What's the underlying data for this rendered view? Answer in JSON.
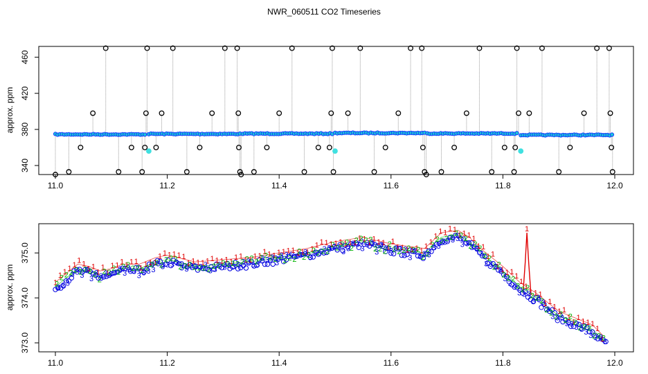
{
  "figure": {
    "title": "NWR_060511  CO2 Timeseries"
  },
  "chart_data": [
    {
      "type": "scatter",
      "panel": "raw",
      "xlabel": "",
      "ylabel": "approx. ppm",
      "xlim": [
        11.0,
        12.0
      ],
      "ylim": [
        330,
        472
      ],
      "x_ticks": [
        11.0,
        11.2,
        11.4,
        11.6,
        11.8,
        12.0
      ],
      "x_tick_labels": [
        "11.0",
        "11.2",
        "11.4",
        "11.6",
        "11.8",
        "12.0"
      ],
      "y_ticks": [
        340,
        380,
        420,
        460
      ],
      "y_tick_labels": [
        "340",
        "380",
        "420",
        "460"
      ],
      "colors": {
        "baseline": "#1a3cff",
        "baseline_fill": "#19c8d6",
        "outlier": "#000000",
        "spike_line": "#9a9a9a",
        "anomaly": "#40e0e0"
      },
      "baseline_segments": [
        {
          "x": [
            11.0,
            11.16
          ],
          "y": [
            374.5,
            374.5
          ]
        },
        {
          "x": [
            11.167,
            11.33
          ],
          "y": [
            375.0,
            375.0
          ]
        },
        {
          "x": [
            11.335,
            11.495
          ],
          "y": [
            375.3,
            375.3
          ]
        },
        {
          "x": [
            11.5,
            11.66
          ],
          "y": [
            376.0,
            376.0
          ]
        },
        {
          "x": [
            11.665,
            11.825
          ],
          "y": [
            375.5,
            375.5
          ]
        },
        {
          "x": [
            11.832,
            11.995
          ],
          "y": [
            373.8,
            373.8
          ]
        }
      ],
      "anomalies": [
        {
          "x": 11.167,
          "y": 356
        },
        {
          "x": 11.5,
          "y": 356
        },
        {
          "x": 11.832,
          "y": 356
        }
      ],
      "outliers": [
        {
          "x": 11.0,
          "y": 330
        },
        {
          "x": 11.024,
          "y": 333
        },
        {
          "x": 11.045,
          "y": 360
        },
        {
          "x": 11.067,
          "y": 398
        },
        {
          "x": 11.09,
          "y": 470
        },
        {
          "x": 11.113,
          "y": 333
        },
        {
          "x": 11.136,
          "y": 360
        },
        {
          "x": 11.155,
          "y": 333
        },
        {
          "x": 11.16,
          "y": 360
        },
        {
          "x": 11.162,
          "y": 398
        },
        {
          "x": 11.164,
          "y": 470
        },
        {
          "x": 11.18,
          "y": 360
        },
        {
          "x": 11.19,
          "y": 398
        },
        {
          "x": 11.21,
          "y": 470
        },
        {
          "x": 11.235,
          "y": 333
        },
        {
          "x": 11.258,
          "y": 360
        },
        {
          "x": 11.28,
          "y": 398
        },
        {
          "x": 11.303,
          "y": 470
        },
        {
          "x": 11.325,
          "y": 470
        },
        {
          "x": 11.327,
          "y": 398
        },
        {
          "x": 11.328,
          "y": 360
        },
        {
          "x": 11.33,
          "y": 333
        },
        {
          "x": 11.332,
          "y": 330
        },
        {
          "x": 11.355,
          "y": 333
        },
        {
          "x": 11.378,
          "y": 360
        },
        {
          "x": 11.4,
          "y": 398
        },
        {
          "x": 11.423,
          "y": 470
        },
        {
          "x": 11.445,
          "y": 333
        },
        {
          "x": 11.47,
          "y": 360
        },
        {
          "x": 11.49,
          "y": 360
        },
        {
          "x": 11.493,
          "y": 398
        },
        {
          "x": 11.495,
          "y": 470
        },
        {
          "x": 11.497,
          "y": 333
        },
        {
          "x": 11.523,
          "y": 398
        },
        {
          "x": 11.545,
          "y": 470
        },
        {
          "x": 11.57,
          "y": 333
        },
        {
          "x": 11.59,
          "y": 360
        },
        {
          "x": 11.613,
          "y": 398
        },
        {
          "x": 11.635,
          "y": 470
        },
        {
          "x": 11.655,
          "y": 470
        },
        {
          "x": 11.657,
          "y": 360
        },
        {
          "x": 11.66,
          "y": 333
        },
        {
          "x": 11.663,
          "y": 330
        },
        {
          "x": 11.69,
          "y": 333
        },
        {
          "x": 11.713,
          "y": 360
        },
        {
          "x": 11.735,
          "y": 398
        },
        {
          "x": 11.758,
          "y": 470
        },
        {
          "x": 11.78,
          "y": 333
        },
        {
          "x": 11.803,
          "y": 360
        },
        {
          "x": 11.82,
          "y": 333
        },
        {
          "x": 11.822,
          "y": 360
        },
        {
          "x": 11.825,
          "y": 470
        },
        {
          "x": 11.828,
          "y": 398
        },
        {
          "x": 11.847,
          "y": 398
        },
        {
          "x": 11.87,
          "y": 470
        },
        {
          "x": 11.9,
          "y": 333
        },
        {
          "x": 11.92,
          "y": 360
        },
        {
          "x": 11.945,
          "y": 398
        },
        {
          "x": 11.968,
          "y": 470
        },
        {
          "x": 11.99,
          "y": 470
        },
        {
          "x": 11.992,
          "y": 398
        },
        {
          "x": 11.994,
          "y": 360
        },
        {
          "x": 11.996,
          "y": 333
        }
      ]
    },
    {
      "type": "scatter",
      "panel": "smoothed",
      "xlabel": "",
      "ylabel": "approx. ppm",
      "xlim": [
        11.0,
        12.0
      ],
      "ylim": [
        372.8,
        375.65
      ],
      "x_ticks": [
        11.0,
        11.2,
        11.4,
        11.6,
        11.8,
        12.0
      ],
      "x_tick_labels": [
        "11.0",
        "11.2",
        "11.4",
        "11.6",
        "11.8",
        "12.0"
      ],
      "y_ticks": [
        373.0,
        374.0,
        375.0
      ],
      "y_tick_labels": [
        "373.0",
        "374.0",
        "375.0"
      ],
      "series": [
        {
          "name": "1",
          "symbol": "1",
          "color": "#e00000",
          "offset": 0.15
        },
        {
          "name": "2",
          "symbol": "2",
          "color": "#00b400",
          "offset": 0.05
        },
        {
          "name": "3",
          "symbol": "3",
          "color": "#0000e0",
          "offset": 0.0
        }
      ],
      "circle_color": "#0000e0",
      "spike_color": "#e00000",
      "trend": {
        "x": [
          11.0,
          11.02,
          11.04,
          11.06,
          11.08,
          11.1,
          11.12,
          11.15,
          11.18,
          11.2,
          11.25,
          11.3,
          11.35,
          11.4,
          11.45,
          11.5,
          11.55,
          11.6,
          11.63,
          11.66,
          11.69,
          11.72,
          11.74,
          11.76,
          11.8,
          11.83,
          11.86,
          11.9,
          11.93,
          11.96,
          11.98
        ],
        "y": [
          374.2,
          374.4,
          374.6,
          374.55,
          374.45,
          374.5,
          374.6,
          374.6,
          374.75,
          374.8,
          374.65,
          374.7,
          374.75,
          374.85,
          374.95,
          375.1,
          375.2,
          375.05,
          375.0,
          374.95,
          375.3,
          375.35,
          375.2,
          374.95,
          374.55,
          374.2,
          373.95,
          373.55,
          373.4,
          373.25,
          373.0
        ]
      },
      "spike": {
        "x": [
          11.836,
          11.84,
          11.843,
          11.846,
          11.85
        ],
        "y": [
          374.1,
          374.8,
          375.45,
          374.8,
          374.1
        ]
      }
    }
  ]
}
